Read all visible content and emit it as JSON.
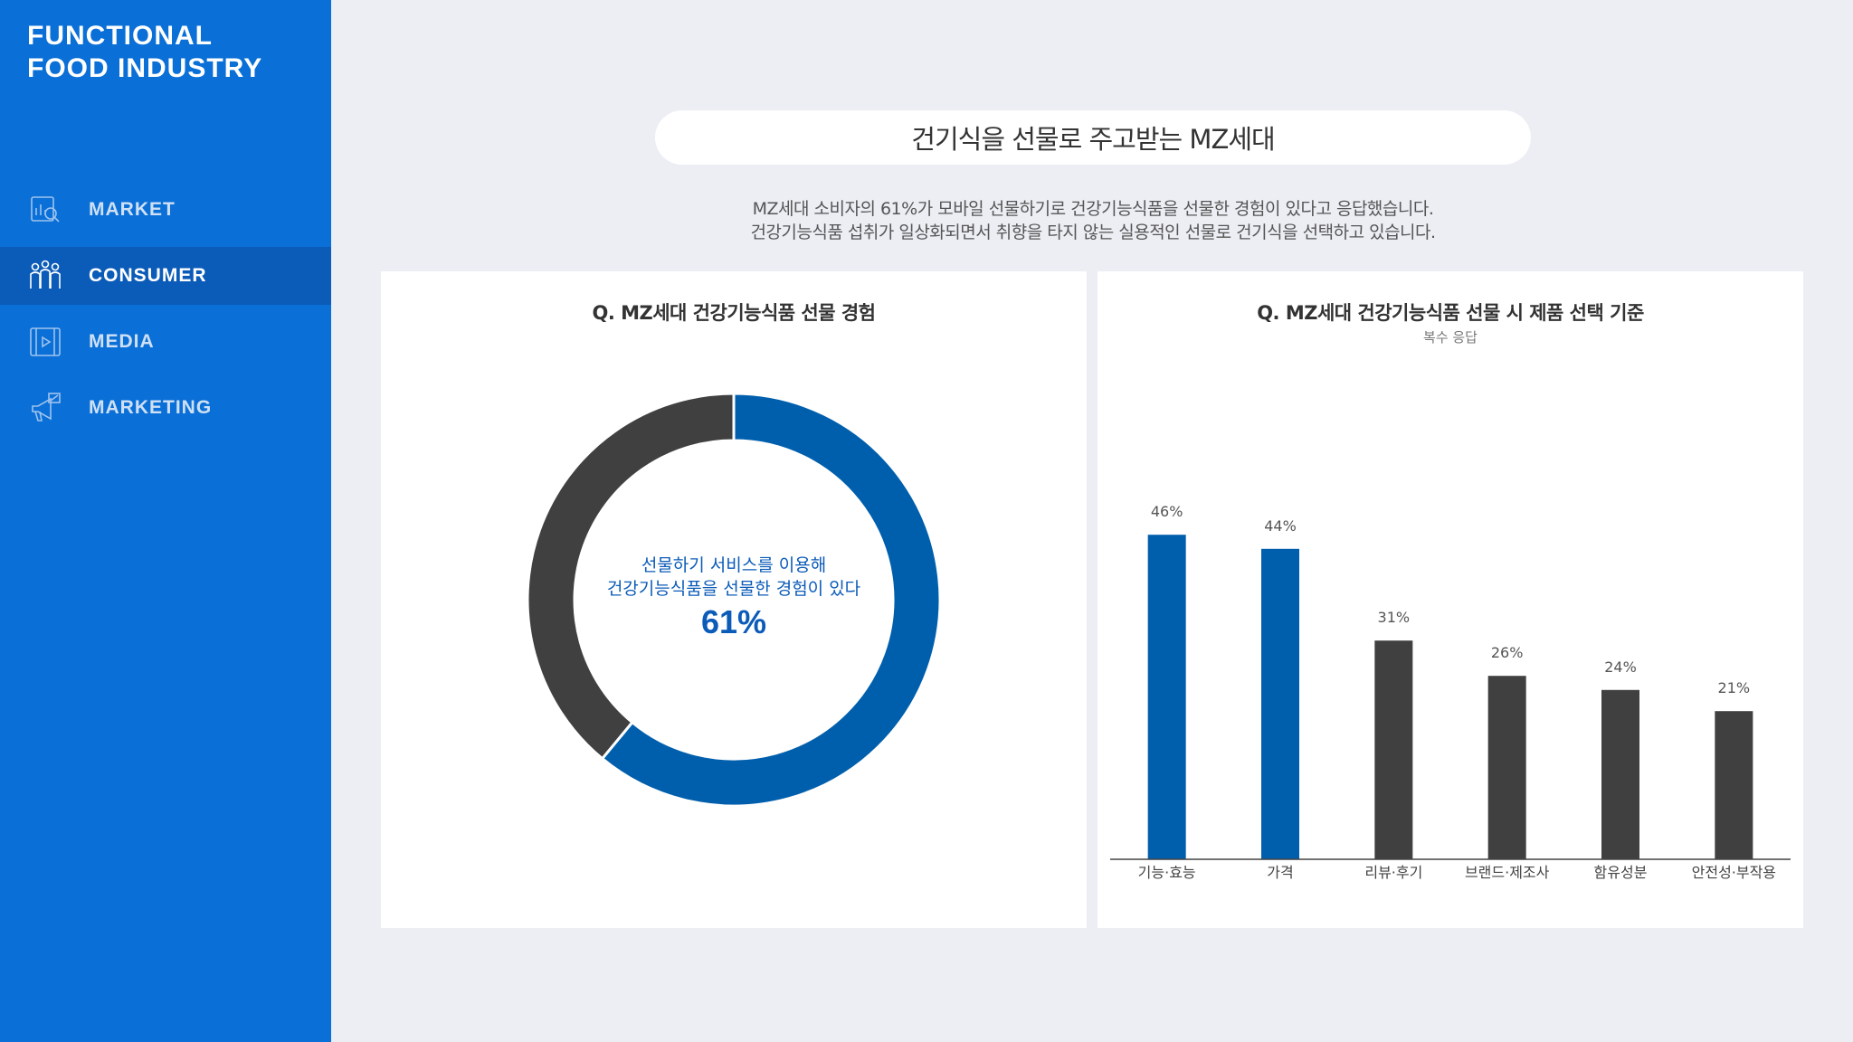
{
  "sidebar": {
    "brand_line1": "FUNCTIONAL",
    "brand_line2": "FOOD INDUSTRY",
    "items": [
      {
        "label": "MARKET",
        "icon": "market-icon",
        "active": false
      },
      {
        "label": "CONSUMER",
        "icon": "consumer-icon",
        "active": true
      },
      {
        "label": "MEDIA",
        "icon": "media-icon",
        "active": false
      },
      {
        "label": "MARKETING",
        "icon": "marketing-icon",
        "active": false
      }
    ]
  },
  "header": {
    "title": "건기식을 선물로 주고받는 MZ세대",
    "desc_line1": "MZ세대 소비자의 61%가 모바일 선물하기로 건강기능식품을 선물한 경험이 있다고 응답했습니다.",
    "desc_line2": "건강기능식품 섭취가 일상화되면서 취향을 타지 않는 실용적인 선물로 건기식을 선택하고 있습니다."
  },
  "colors": {
    "sidebar_bg": "#0a6fd6",
    "accent_blue": "#005fad",
    "dark_gray": "#404040"
  },
  "chart_data": [
    {
      "type": "pie",
      "style": "donut",
      "title": "Q. MZ세대 건강기능식품 선물 경험",
      "center_text_line1": "선물하기 서비스를 이용해",
      "center_text_line2": "건강기능식품을 선물한 경험이 있다",
      "center_value": "61%",
      "slices": [
        {
          "label": "선물한 경험이 있다",
          "value": 61,
          "color": "#005fad"
        },
        {
          "label": "",
          "value": 39,
          "color": "#404040"
        }
      ]
    },
    {
      "type": "bar",
      "title": "Q. MZ세대 건강기능식품 선물 시 제품 선택 기준",
      "note": "복수 응답",
      "categories": [
        "기능·효능",
        "가격",
        "리뷰·후기",
        "브랜드·제조사",
        "함유성분",
        "안전성·부작용"
      ],
      "values": [
        46,
        44,
        31,
        26,
        24,
        21
      ],
      "value_labels": [
        "46%",
        "44%",
        "31%",
        "26%",
        "24%",
        "21%"
      ],
      "colors": [
        "#005fad",
        "#005fad",
        "#404040",
        "#404040",
        "#404040",
        "#404040"
      ],
      "ylim": [
        0,
        50
      ],
      "grid": false
    }
  ]
}
